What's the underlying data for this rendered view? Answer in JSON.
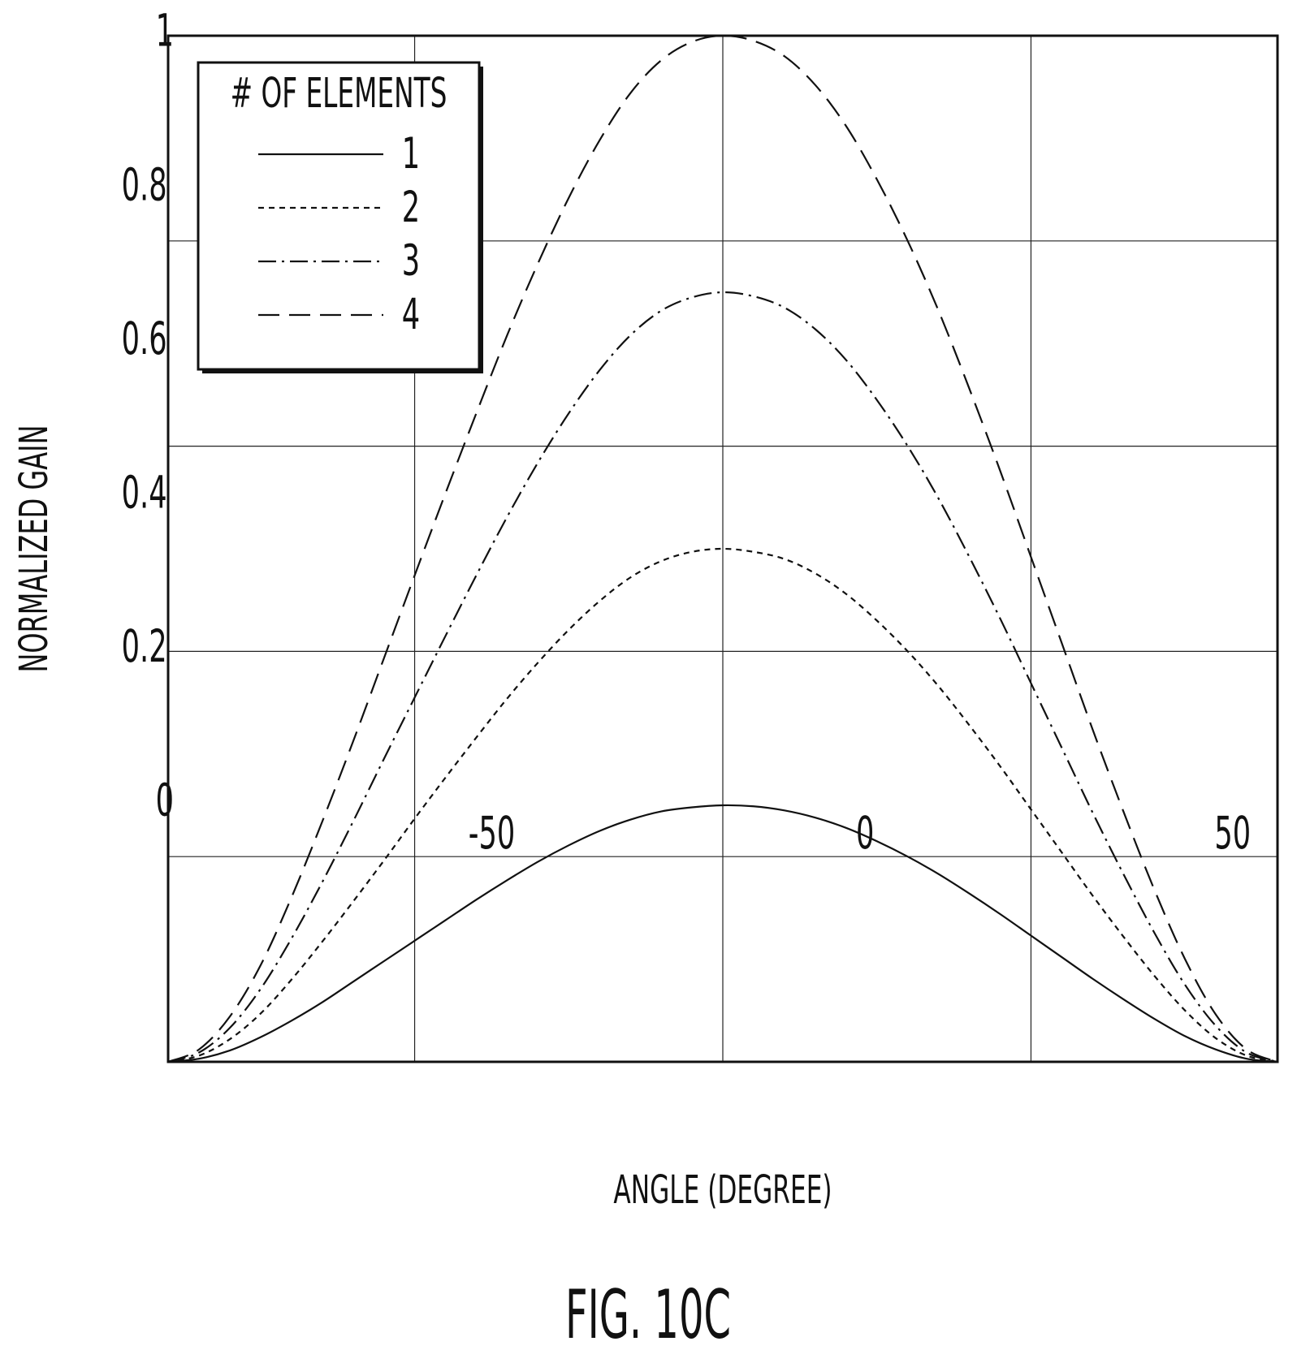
{
  "chart_data": {
    "type": "line",
    "xlabel": "ANGLE (DEGREE)",
    "ylabel": "NORMALIZED GAIN",
    "xlim": [
      -90,
      90
    ],
    "ylim": [
      0,
      1
    ],
    "xticks": [
      -50,
      0,
      50
    ],
    "xtick_labels": [
      "-50",
      "0",
      "50"
    ],
    "yticks": [
      0,
      0.2,
      0.4,
      0.6,
      0.8,
      1
    ],
    "ytick_labels": [
      "0",
      "0.2",
      "0.4",
      "0.6",
      "0.8",
      "1"
    ],
    "grid": true,
    "legend_position": "top-left",
    "legend_title": "# OF ELEMENTS",
    "x": [
      -90,
      -85,
      -80,
      -75,
      -70,
      -65,
      -60,
      -55,
      -50,
      -45,
      -40,
      -35,
      -30,
      -25,
      -20,
      -15,
      -10,
      -5,
      0,
      5,
      10,
      15,
      20,
      25,
      30,
      35,
      40,
      45,
      50,
      55,
      60,
      65,
      70,
      75,
      80,
      85,
      90
    ],
    "series": [
      {
        "name": "1",
        "dash": "solid",
        "values": [
          0,
          0.003,
          0.011,
          0.024,
          0.04,
          0.058,
          0.078,
          0.098,
          0.118,
          0.138,
          0.158,
          0.177,
          0.195,
          0.211,
          0.225,
          0.236,
          0.244,
          0.248,
          0.25,
          0.249,
          0.245,
          0.238,
          0.228,
          0.215,
          0.2,
          0.183,
          0.164,
          0.144,
          0.123,
          0.102,
          0.081,
          0.061,
          0.042,
          0.025,
          0.012,
          0.003,
          0
        ]
      },
      {
        "name": "2",
        "dash": "short",
        "values": [
          0,
          0.006,
          0.022,
          0.047,
          0.08,
          0.117,
          0.156,
          0.196,
          0.237,
          0.277,
          0.316,
          0.354,
          0.389,
          0.421,
          0.449,
          0.472,
          0.488,
          0.497,
          0.5,
          0.497,
          0.49,
          0.476,
          0.456,
          0.43,
          0.4,
          0.366,
          0.328,
          0.288,
          0.246,
          0.204,
          0.162,
          0.122,
          0.084,
          0.05,
          0.023,
          0.006,
          0
        ]
      },
      {
        "name": "3",
        "dash": "dashdot",
        "values": [
          0,
          0.009,
          0.033,
          0.071,
          0.12,
          0.175,
          0.234,
          0.295,
          0.355,
          0.415,
          0.474,
          0.531,
          0.584,
          0.632,
          0.674,
          0.708,
          0.732,
          0.745,
          0.75,
          0.746,
          0.735,
          0.714,
          0.684,
          0.645,
          0.6,
          0.549,
          0.492,
          0.432,
          0.369,
          0.306,
          0.243,
          0.183,
          0.126,
          0.075,
          0.035,
          0.009,
          0
        ]
      },
      {
        "name": "4",
        "dash": "long",
        "values": [
          0,
          0.012,
          0.044,
          0.094,
          0.16,
          0.234,
          0.312,
          0.393,
          0.474,
          0.554,
          0.632,
          0.708,
          0.778,
          0.842,
          0.898,
          0.944,
          0.976,
          0.994,
          1.0,
          0.995,
          0.98,
          0.952,
          0.912,
          0.86,
          0.8,
          0.732,
          0.656,
          0.576,
          0.492,
          0.408,
          0.324,
          0.244,
          0.168,
          0.1,
          0.046,
          0.012,
          0
        ]
      }
    ]
  },
  "figure_label": "FIG. 10C"
}
